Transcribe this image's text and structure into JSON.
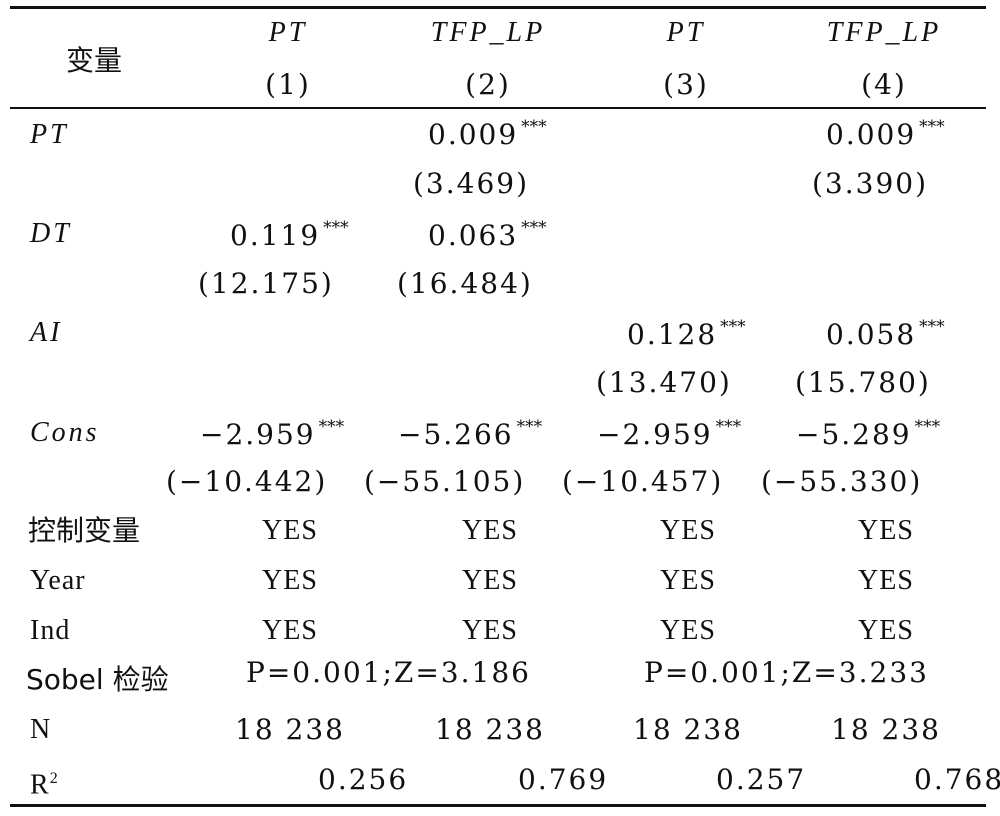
{
  "header": {
    "var_label": "变量",
    "cols": [
      {
        "name": "PT",
        "num": "(1)"
      },
      {
        "name": "TFP_LP",
        "num": "(2)"
      },
      {
        "name": "PT",
        "num": "(3)"
      },
      {
        "name": "TFP_LP",
        "num": "(4)"
      }
    ]
  },
  "stars": "***",
  "rows": {
    "pt": {
      "label": "PT",
      "coef2": "0.009",
      "t2": "(3.469)",
      "coef4": "0.009",
      "t4": "(3.390)"
    },
    "dt": {
      "label": "DT",
      "coef1": "0.119",
      "t1": "(12.175)",
      "coef2": "0.063",
      "t2": "(16.484)"
    },
    "ai": {
      "label": "AI",
      "coef3": "0.128",
      "t3": "(13.470)",
      "coef4": "0.058",
      "t4": "(15.780)"
    },
    "cons": {
      "label": "Cons",
      "coef": [
        "−2.959",
        "−5.266",
        "−2.959",
        "−5.289"
      ],
      "t": [
        "(−10.442)",
        "(−55.105)",
        "(−10.457)",
        "(−55.330)"
      ]
    },
    "controls": {
      "label": "控制变量",
      "vals": [
        "YES",
        "YES",
        "YES",
        "YES"
      ]
    },
    "year": {
      "label": "Year",
      "vals": [
        "YES",
        "YES",
        "YES",
        "YES"
      ]
    },
    "ind": {
      "label": "Ind",
      "vals": [
        "YES",
        "YES",
        "YES",
        "YES"
      ]
    },
    "sobel": {
      "label": "Sobel 检验",
      "v1": "P=0.001;Z=3.186",
      "v2": "P=0.001;Z=3.233"
    },
    "n": {
      "label": "N",
      "vals": [
        "18 238",
        "18 238",
        "18 238",
        "18 238"
      ]
    },
    "r2": {
      "label": "R",
      "sup": "2",
      "vals": [
        "0.256",
        "0.769",
        "0.257",
        "0.768"
      ]
    }
  }
}
